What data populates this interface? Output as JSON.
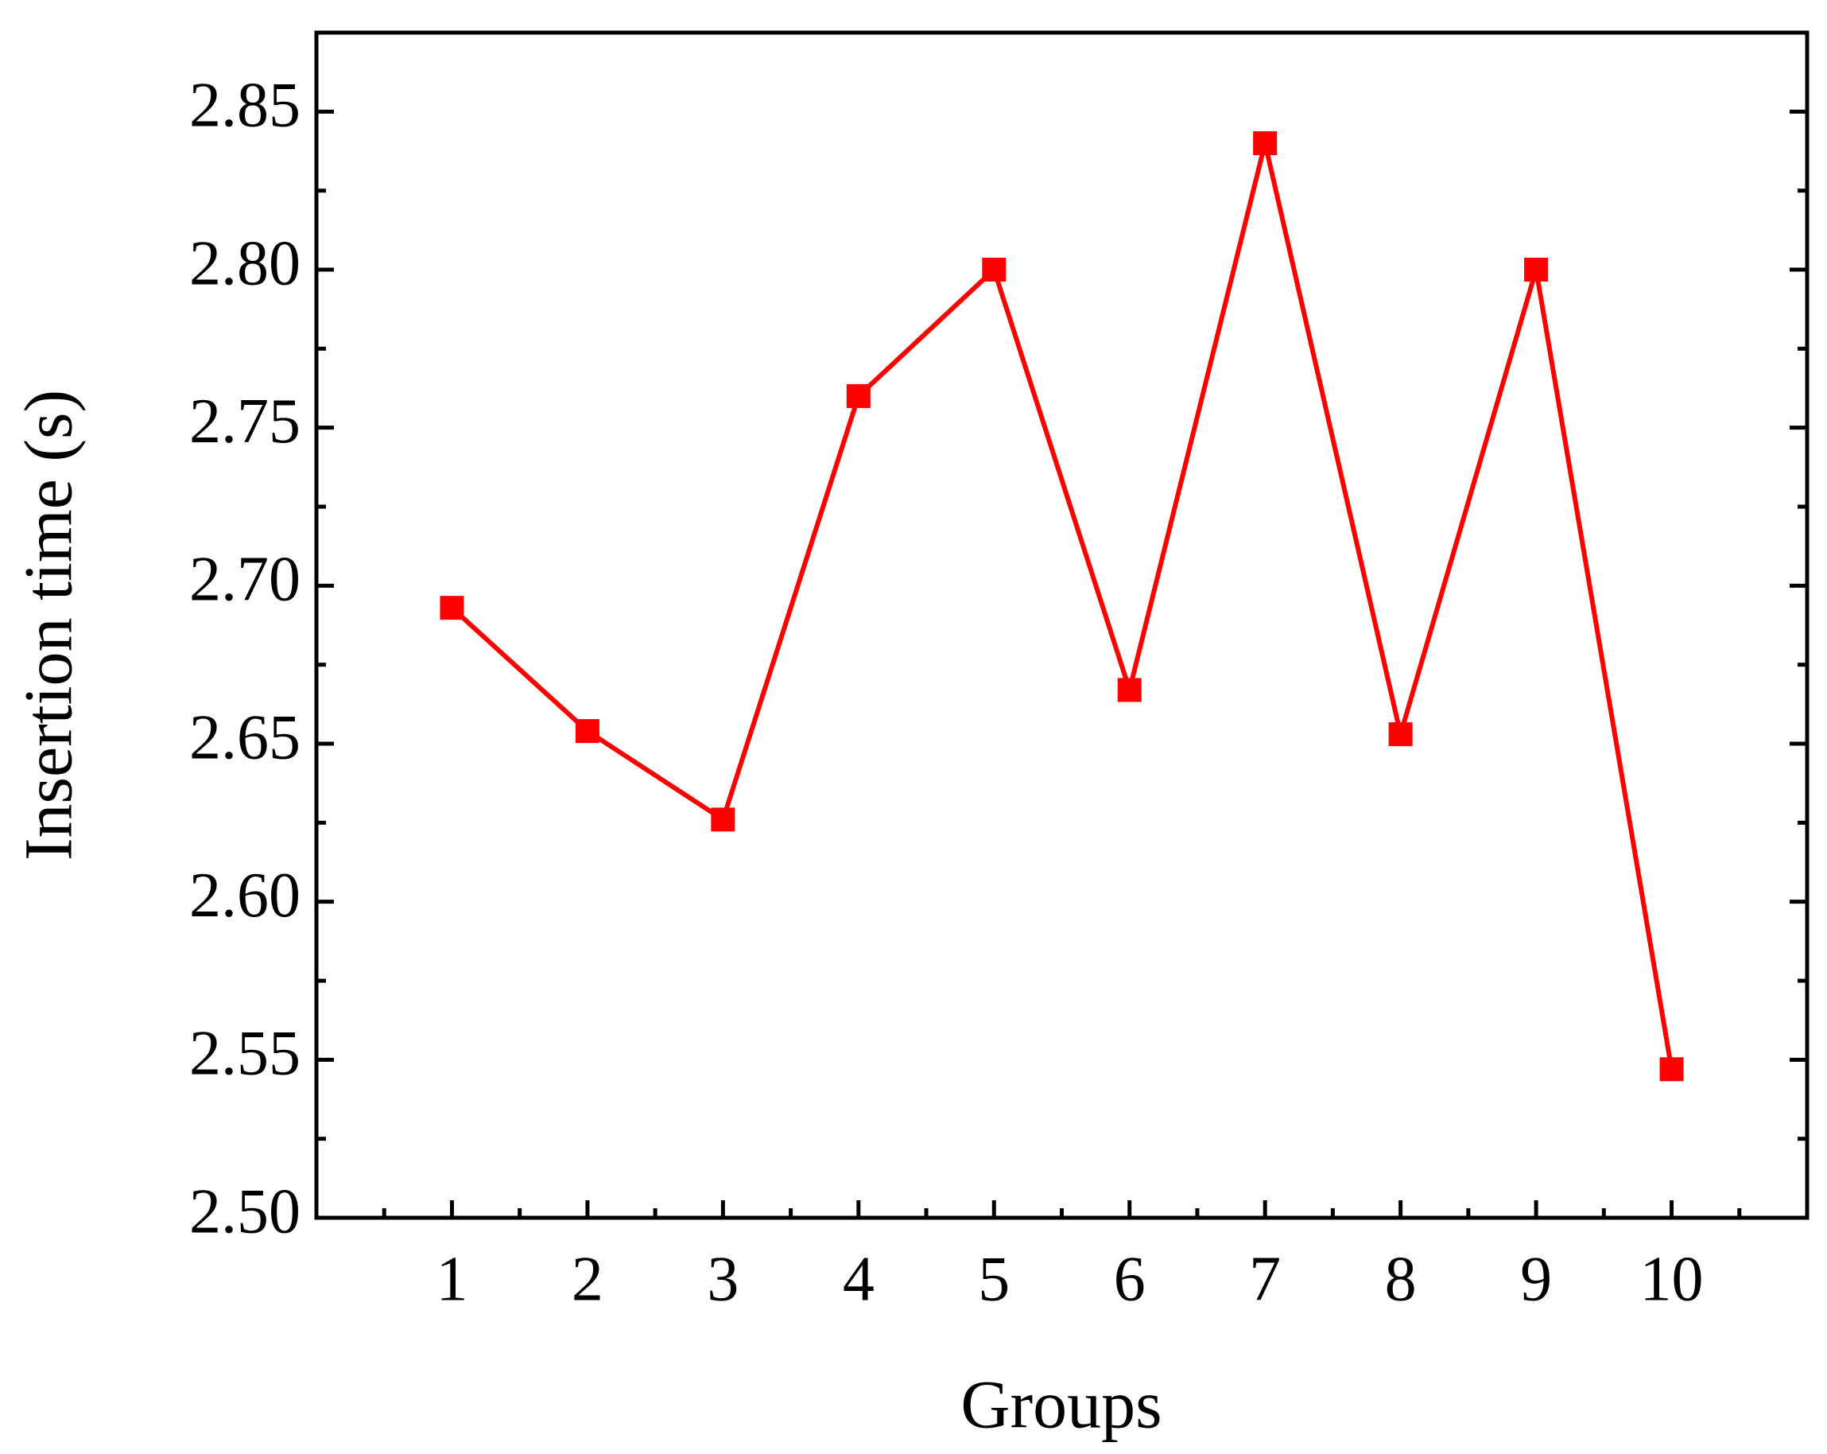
{
  "chart_data": {
    "type": "line",
    "x_label": "Groups",
    "y_label": "Insertion time (s)",
    "x": [
      1,
      2,
      3,
      4,
      5,
      6,
      7,
      8,
      9,
      10
    ],
    "series": [
      {
        "color": "#ff0000",
        "values": [
          2.693,
          2.654,
          2.626,
          2.76,
          2.8,
          2.667,
          2.84,
          2.653,
          2.8,
          2.547
        ]
      }
    ],
    "xlim": [
      0,
      11
    ],
    "xticks": [
      1,
      2,
      3,
      4,
      5,
      6,
      7,
      8,
      9,
      10
    ],
    "ylim": [
      2.5,
      2.875
    ],
    "yticks": [
      {
        "value": 2.5,
        "label": "2.50"
      },
      {
        "value": 2.55,
        "label": "2.55"
      },
      {
        "value": 2.6,
        "label": "2.60"
      },
      {
        "value": 2.65,
        "label": "2.65"
      },
      {
        "value": 2.7,
        "label": "2.70"
      },
      {
        "value": 2.75,
        "label": "2.75"
      },
      {
        "value": 2.8,
        "label": "2.80"
      },
      {
        "value": 2.85,
        "label": "2.85"
      }
    ],
    "grid": false
  }
}
